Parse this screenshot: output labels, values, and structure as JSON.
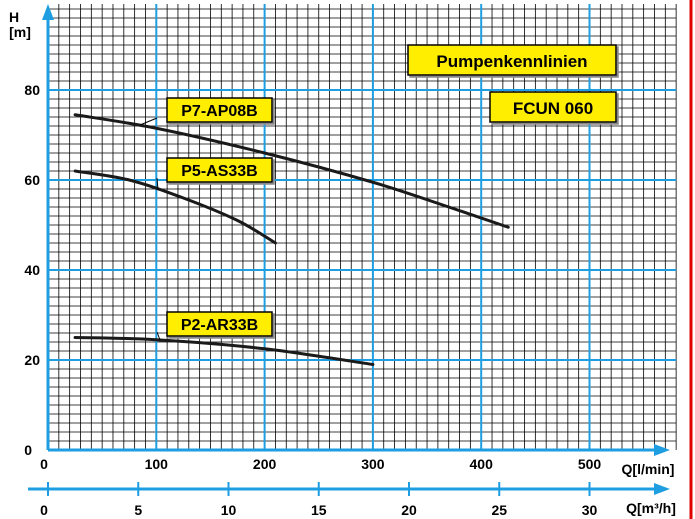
{
  "chart_data": {
    "type": "line",
    "title": "Pumpenkennlinien",
    "subtitle": "FCUN 060",
    "ylabel_top": "H",
    "ylabel_unit": "[m]",
    "xlabel": "Q[l/min]",
    "xlabel2": "Q[m³/h]",
    "xlim": [
      0,
      580
    ],
    "ylim": [
      0,
      100
    ],
    "x_ticks": [
      0,
      100,
      200,
      300,
      400,
      500
    ],
    "x_tick_labels": [
      "0",
      "100",
      "200",
      "300",
      "400",
      "500"
    ],
    "x2_ticks": [
      0,
      5,
      10,
      15,
      20,
      25,
      30
    ],
    "x2_tick_labels": [
      "0",
      "5",
      "10",
      "15",
      "20",
      "25",
      "30"
    ],
    "y_ticks": [
      20,
      40,
      60,
      80
    ],
    "y_tick_labels": [
      "20",
      "40",
      "60",
      "80"
    ],
    "grid": true,
    "colors": {
      "major_grid": "#1e9ee0",
      "minor_grid": "#000000",
      "axis": "#1e9ee0",
      "curve": "#1a1a1a",
      "label_fill": "#ffee00",
      "border_right": "#e00000"
    },
    "series": [
      {
        "name": "P7-AP08B",
        "x": [
          25,
          100,
          200,
          300,
          370,
          425
        ],
        "y": [
          74.5,
          71.5,
          66,
          59.5,
          54,
          49.5
        ]
      },
      {
        "name": "P5-AS33B",
        "x": [
          25,
          75,
          125,
          175,
          210
        ],
        "y": [
          62,
          60,
          56,
          51,
          46
        ]
      },
      {
        "name": "P2-AR33B",
        "x": [
          25,
          100,
          200,
          300
        ],
        "y": [
          25,
          24.5,
          22.5,
          19
        ]
      }
    ]
  }
}
